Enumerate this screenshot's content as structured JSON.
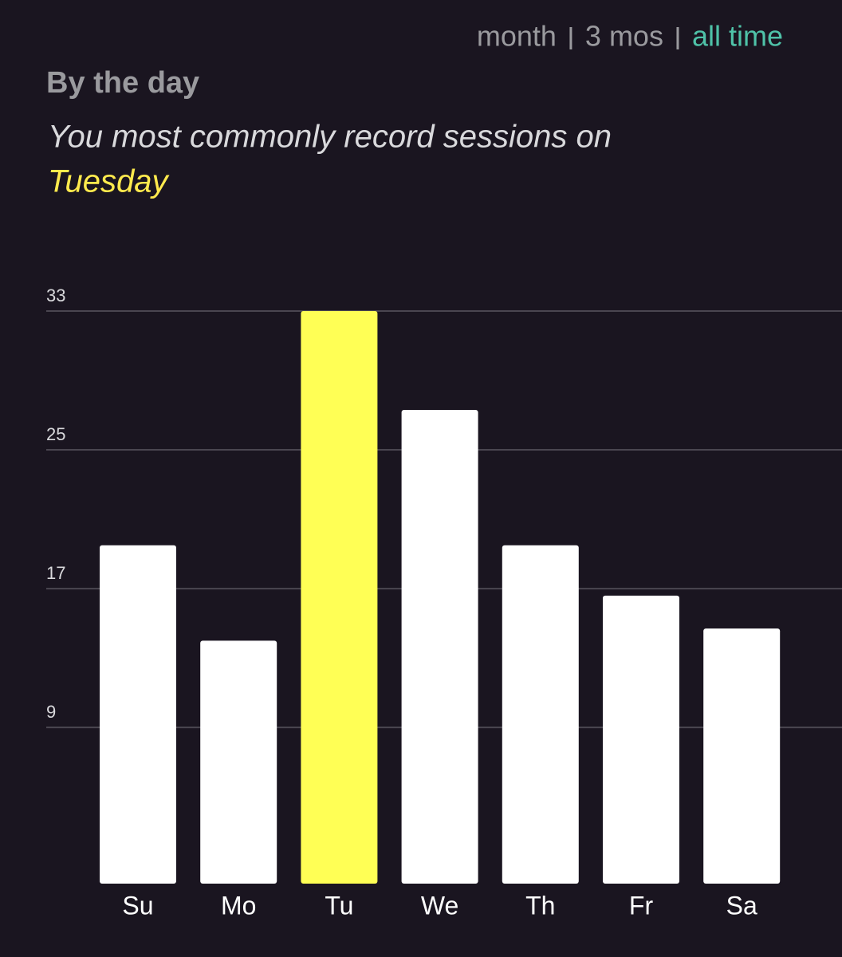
{
  "tabs": {
    "items": [
      "month",
      "3 mos",
      "all time"
    ],
    "active": 2
  },
  "chart_data": {
    "type": "bar",
    "title": "By the day",
    "subtitle": "You most commonly record sessions on",
    "subtitle_highlight": "Tuesday",
    "categories": [
      "Su",
      "Mo",
      "Tu",
      "We",
      "Th",
      "Fr",
      "Sa"
    ],
    "values": [
      19.5,
      14,
      33,
      27.3,
      19.5,
      16.6,
      14.7
    ],
    "colors": [
      "#ffffff",
      "#ffffff",
      "#ffff55",
      "#ffffff",
      "#ffffff",
      "#ffffff",
      "#ffffff"
    ],
    "ylim": [
      0,
      33
    ],
    "yticks": [
      9,
      17,
      25,
      33
    ],
    "grid": true
  }
}
